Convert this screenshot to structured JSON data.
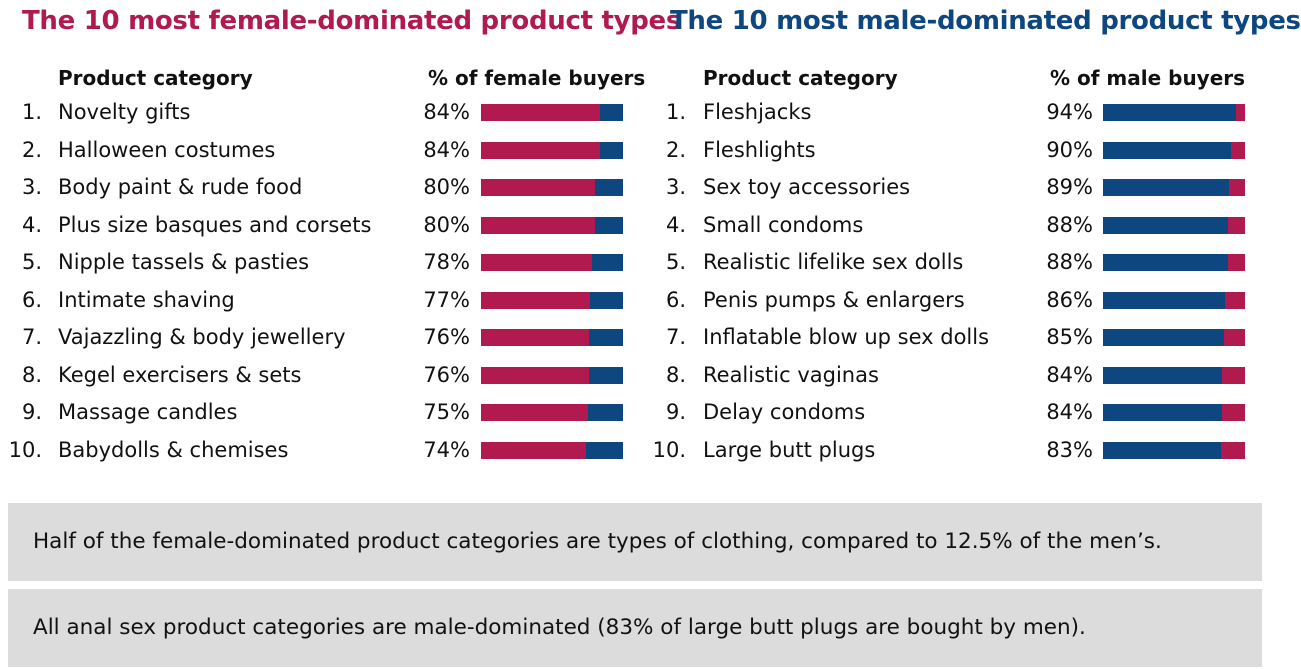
{
  "colors": {
    "female": "#b01a4f",
    "male": "#0e477f"
  },
  "chart_data": [
    {
      "type": "bar",
      "title": "The 10 most female-dominated product types",
      "column_headers": [
        "Product category",
        "% of female buyers"
      ],
      "ranks": [
        "1.",
        "2.",
        "3.",
        "4.",
        "5.",
        "6.",
        "7.",
        "8.",
        "9.",
        "10."
      ],
      "categories": [
        "Novelty gifts",
        "Halloween costumes",
        "Body paint & rude food",
        "Plus size basques and corsets",
        "Nipple tassels & pasties",
        "Intimate shaving",
        "Vajazzling & body jewellery",
        "Kegel exercisers & sets",
        "Massage candles",
        "Babydolls & chemises"
      ],
      "values": [
        84,
        84,
        80,
        80,
        78,
        77,
        76,
        76,
        75,
        74
      ],
      "value_labels": [
        "84%",
        "84%",
        "80%",
        "80%",
        "78%",
        "77%",
        "76%",
        "76%",
        "75%",
        "74%"
      ],
      "xlim": [
        0,
        100
      ]
    },
    {
      "type": "bar",
      "title": "The 10 most male-dominated product types",
      "column_headers": [
        "Product category",
        "% of male buyers"
      ],
      "ranks": [
        "1.",
        "2.",
        "3.",
        "4.",
        "5.",
        "6.",
        "7.",
        "8.",
        "9.",
        "10."
      ],
      "categories": [
        "Fleshjacks",
        "Fleshlights",
        "Sex toy accessories",
        "Small condoms",
        "Realistic lifelike sex dolls",
        "Penis pumps & enlargers",
        "Inflatable blow up sex dolls",
        "Realistic vaginas",
        "Delay condoms",
        "Large butt plugs"
      ],
      "values": [
        94,
        90,
        89,
        88,
        88,
        86,
        85,
        84,
        84,
        83
      ],
      "value_labels": [
        "94%",
        "90%",
        "89%",
        "88%",
        "88%",
        "86%",
        "85%",
        "84%",
        "84%",
        "83%"
      ],
      "xlim": [
        0,
        100
      ]
    }
  ],
  "notes": [
    "Half of the female-dominated product categories are types of clothing, compared to 12.5% of the men’s.",
    "All anal sex product categories are male-dominated (83% of large butt plugs are bought by men)."
  ]
}
